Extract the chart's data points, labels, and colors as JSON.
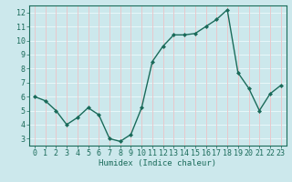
{
  "x": [
    0,
    1,
    2,
    3,
    4,
    5,
    6,
    7,
    8,
    9,
    10,
    11,
    12,
    13,
    14,
    15,
    16,
    17,
    18,
    19,
    20,
    21,
    22,
    23
  ],
  "y": [
    6.0,
    5.7,
    5.0,
    4.0,
    4.5,
    5.2,
    4.7,
    3.0,
    2.8,
    3.3,
    5.2,
    8.5,
    9.6,
    10.4,
    10.4,
    10.5,
    11.0,
    11.5,
    12.2,
    7.7,
    6.6,
    5.0,
    6.2,
    6.8
  ],
  "line_color": "#1a6b5a",
  "marker": "D",
  "marker_size": 2.0,
  "bg_color": "#cce8ec",
  "grid_white_color": "#e8f8fa",
  "grid_pink_color": "#e8c8cc",
  "xlabel": "Humidex (Indice chaleur)",
  "xlim": [
    -0.5,
    23.5
  ],
  "ylim": [
    2.5,
    12.5
  ],
  "yticks": [
    3,
    4,
    5,
    6,
    7,
    8,
    9,
    10,
    11,
    12
  ],
  "xticks": [
    0,
    1,
    2,
    3,
    4,
    5,
    6,
    7,
    8,
    9,
    10,
    11,
    12,
    13,
    14,
    15,
    16,
    17,
    18,
    19,
    20,
    21,
    22,
    23
  ],
  "label_fontsize": 6.5,
  "tick_fontsize": 6.0
}
